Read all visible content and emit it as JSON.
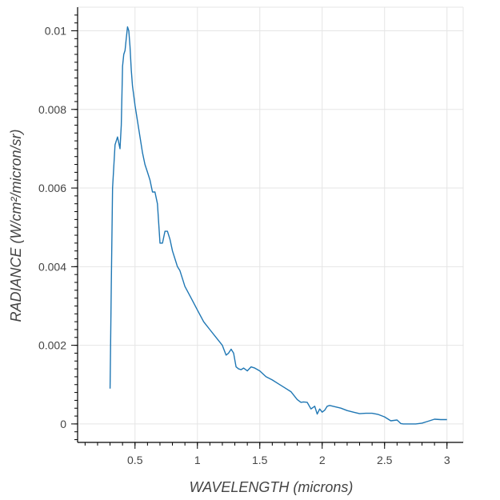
{
  "chart_data": {
    "type": "line",
    "title": "",
    "xlabel": "WAVELENGTH (microns)",
    "ylabel": "RADIANCE (W/cm²/micron/sr)",
    "xlim": [
      0.04,
      3.13
    ],
    "ylim": [
      -0.00047,
      0.0106
    ],
    "x_ticks": [
      0.5,
      1,
      1.5,
      2,
      2.5,
      3
    ],
    "x_tick_labels": [
      "0.5",
      "1",
      "1.5",
      "2",
      "2.5",
      "3"
    ],
    "y_ticks": [
      0,
      0.002,
      0.004,
      0.006,
      0.008,
      0.01
    ],
    "y_tick_labels": [
      "0",
      "0.002",
      "0.004",
      "0.006",
      "0.008",
      "0.01"
    ],
    "grid": true,
    "line_color": "#1f77b4",
    "series": [
      {
        "x": [
          0.3,
          0.31,
          0.32,
          0.34,
          0.36,
          0.38,
          0.39,
          0.4,
          0.41,
          0.42,
          0.43,
          0.44,
          0.45,
          0.46,
          0.47,
          0.48,
          0.5,
          0.52,
          0.54,
          0.56,
          0.58,
          0.6,
          0.62,
          0.64,
          0.66,
          0.68,
          0.7,
          0.72,
          0.74,
          0.76,
          0.78,
          0.8,
          0.82,
          0.84,
          0.86,
          0.88,
          0.9,
          0.95,
          1.0,
          1.05,
          1.1,
          1.15,
          1.2,
          1.23,
          1.25,
          1.27,
          1.29,
          1.31,
          1.33,
          1.35,
          1.37,
          1.4,
          1.43,
          1.46,
          1.5,
          1.55,
          1.6,
          1.65,
          1.7,
          1.75,
          1.8,
          1.83,
          1.85,
          1.88,
          1.91,
          1.94,
          1.96,
          1.98,
          2.0,
          2.02,
          2.04,
          2.06,
          2.1,
          2.15,
          2.2,
          2.25,
          2.3,
          2.35,
          2.4,
          2.45,
          2.5,
          2.55,
          2.6,
          2.63,
          2.65,
          2.67,
          2.7,
          2.75,
          2.8,
          2.85,
          2.9,
          2.95,
          3.0
        ],
        "y": [
          0.0009,
          0.0035,
          0.006,
          0.0071,
          0.0073,
          0.007,
          0.0076,
          0.0091,
          0.0094,
          0.0095,
          0.0098,
          0.0101,
          0.01,
          0.0096,
          0.009,
          0.0086,
          0.0081,
          0.0077,
          0.0073,
          0.0069,
          0.0066,
          0.0064,
          0.0062,
          0.0059,
          0.0059,
          0.0056,
          0.0046,
          0.0046,
          0.0049,
          0.0049,
          0.0047,
          0.0044,
          0.0042,
          0.004,
          0.0039,
          0.0037,
          0.0035,
          0.0032,
          0.0029,
          0.0026,
          0.0024,
          0.0022,
          0.002,
          0.00175,
          0.0018,
          0.0019,
          0.0018,
          0.00145,
          0.0014,
          0.00138,
          0.00142,
          0.00135,
          0.00145,
          0.00142,
          0.00135,
          0.0012,
          0.00112,
          0.00102,
          0.00092,
          0.00082,
          0.00062,
          0.00055,
          0.00056,
          0.00055,
          0.00038,
          0.00045,
          0.00025,
          0.00038,
          0.0003,
          0.00035,
          0.00045,
          0.00047,
          0.00044,
          0.0004,
          0.00034,
          0.0003,
          0.00026,
          0.00027,
          0.00027,
          0.00024,
          0.00018,
          8e-05,
          0.0001,
          1e-05,
          0.0,
          0.0,
          0.0,
          0.0,
          2e-05,
          7e-05,
          0.00012,
          0.00011,
          0.00011
        ]
      }
    ]
  }
}
